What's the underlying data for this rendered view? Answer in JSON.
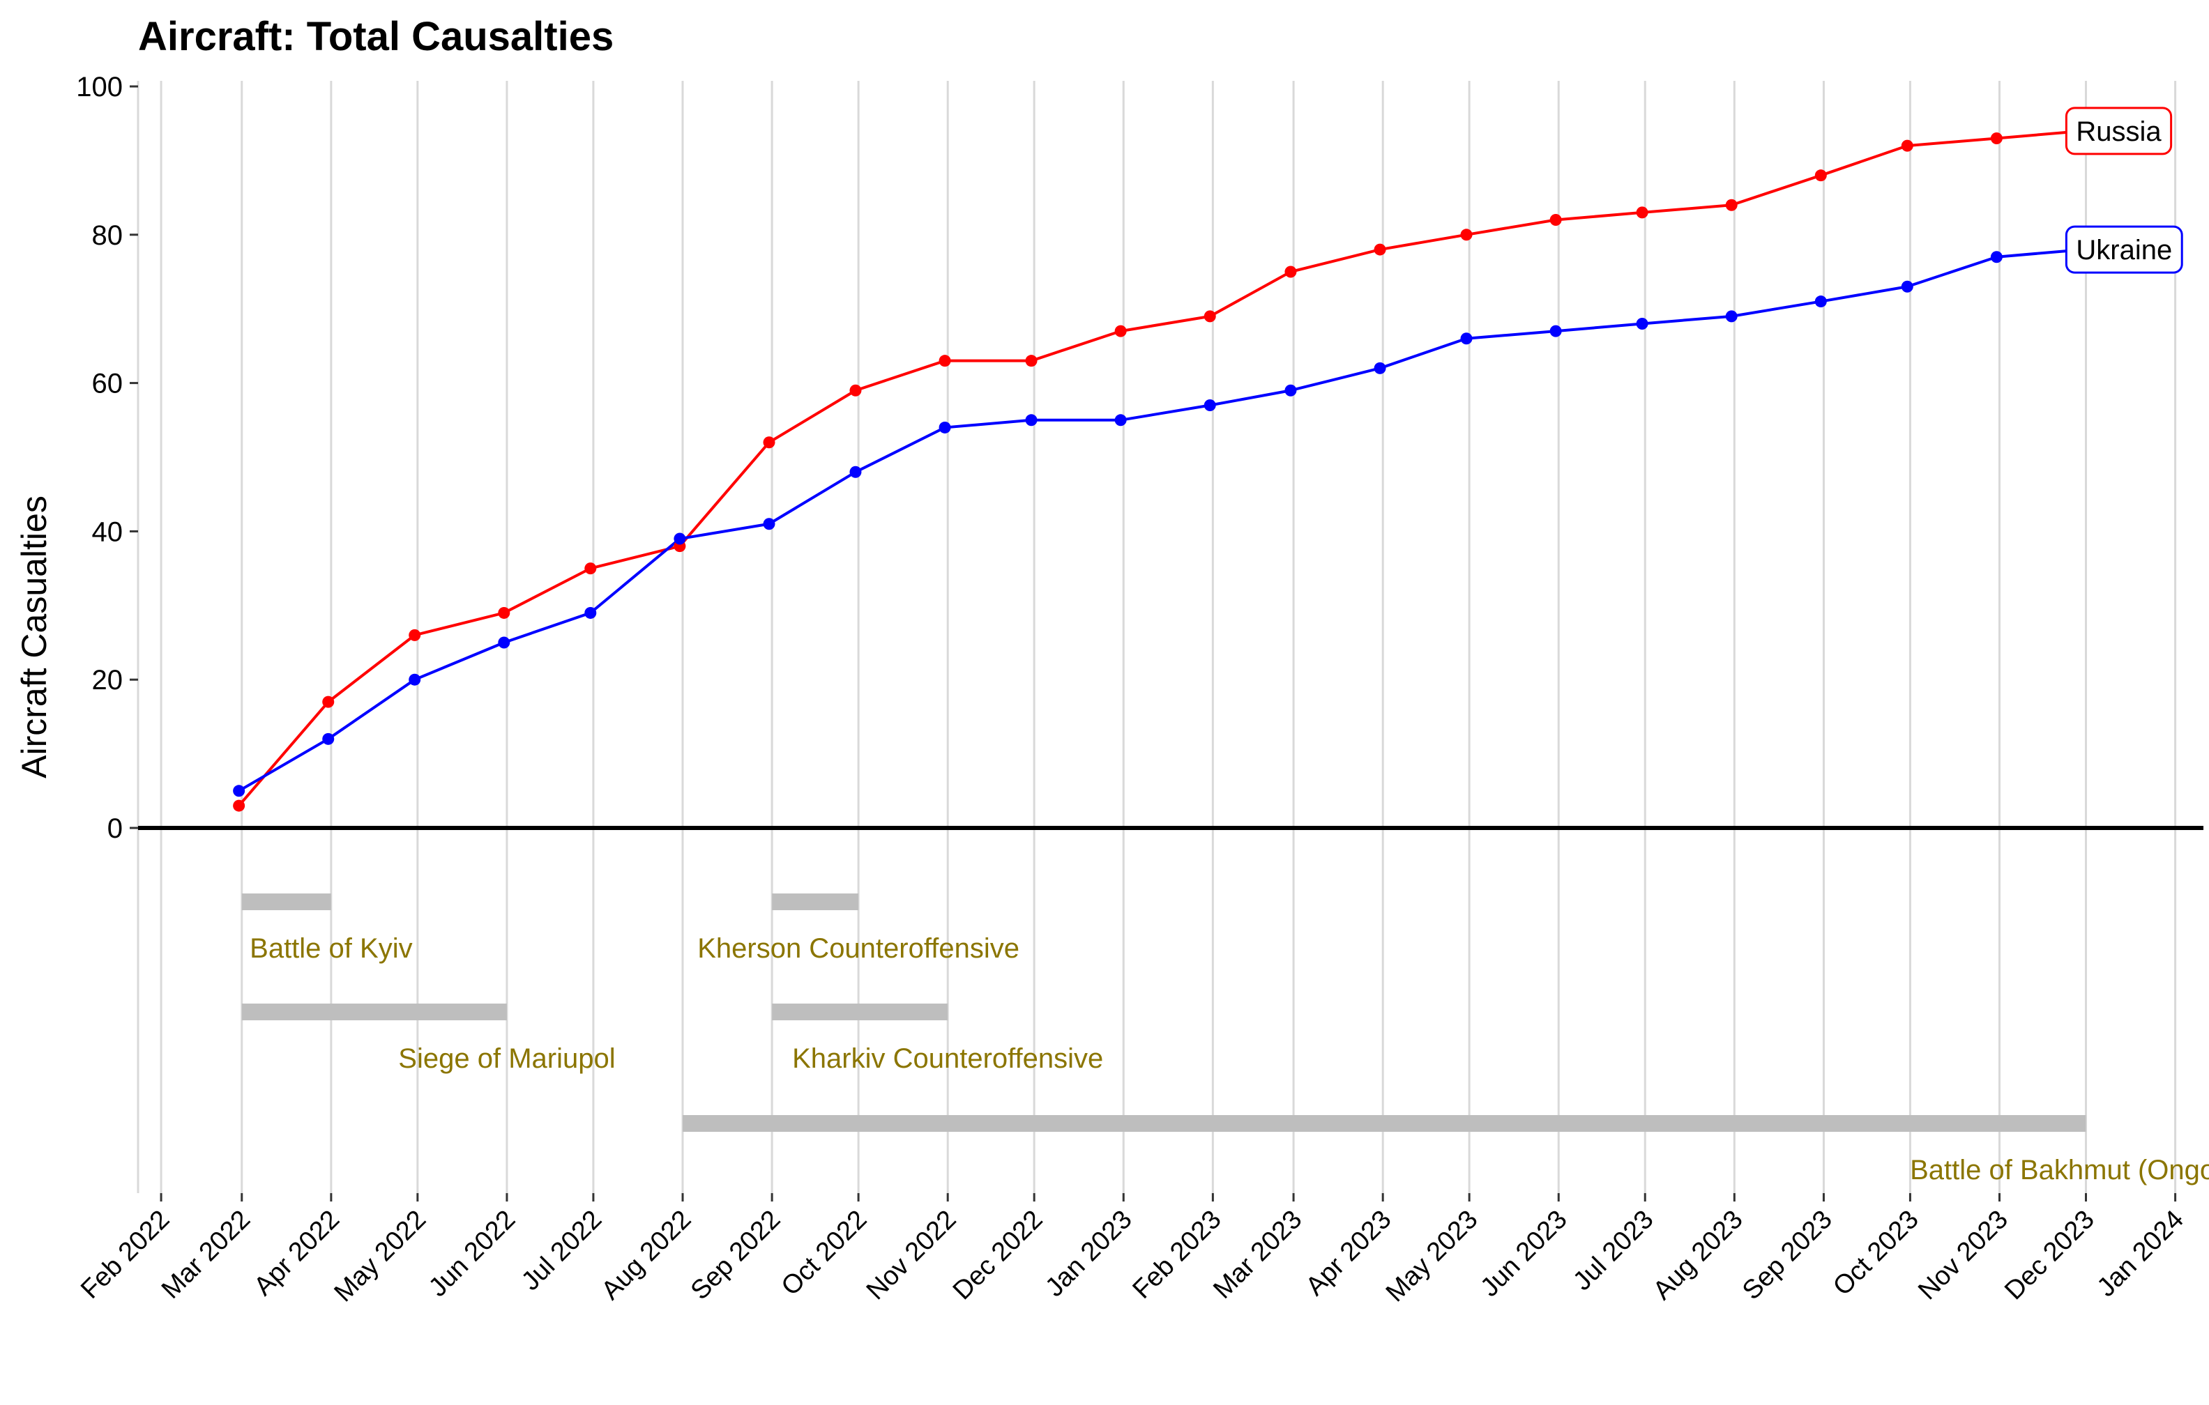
{
  "chart_data": {
    "type": "line",
    "title": "Aircraft: Total Causalties",
    "xlabel": "",
    "ylabel": "Aircraft Casualties",
    "ylim": [
      0,
      100
    ],
    "yticks": [
      0,
      20,
      40,
      60,
      80,
      100
    ],
    "xlim": [
      "2022-01-24",
      "2024-01-04"
    ],
    "xticks": [
      "2022-02-01",
      "2022-03-01",
      "2022-04-01",
      "2022-05-01",
      "2022-06-01",
      "2022-07-01",
      "2022-08-01",
      "2022-09-01",
      "2022-10-01",
      "2022-11-01",
      "2022-12-01",
      "2023-01-01",
      "2023-02-01",
      "2023-03-01",
      "2023-04-01",
      "2023-05-01",
      "2023-06-01",
      "2023-07-01",
      "2023-08-01",
      "2023-09-01",
      "2023-10-01",
      "2023-11-01",
      "2023-12-01",
      "2024-01-01"
    ],
    "xtick_labels": [
      "Feb 2022",
      "Mar 2022",
      "Apr 2022",
      "May 2022",
      "Jun 2022",
      "Jul 2022",
      "Aug 2022",
      "Sep 2022",
      "Oct 2022",
      "Nov 2022",
      "Dec 2022",
      "Jan 2023",
      "Feb 2023",
      "Mar 2023",
      "Apr 2023",
      "May 2023",
      "Jun 2023",
      "Jul 2023",
      "Aug 2023",
      "Sep 2023",
      "Oct 2023",
      "Nov 2023",
      "Dec 2023",
      "Jan 2024"
    ],
    "grid": "vertical major lines only",
    "series": [
      {
        "name": "Russia",
        "color": "#ff0000",
        "x": [
          "2022-02-28",
          "2022-03-31",
          "2022-04-30",
          "2022-05-31",
          "2022-06-30",
          "2022-07-31",
          "2022-08-31",
          "2022-09-30",
          "2022-10-31",
          "2022-11-30",
          "2022-12-31",
          "2023-01-31",
          "2023-02-28",
          "2023-03-31",
          "2023-04-30",
          "2023-05-31",
          "2023-06-30",
          "2023-07-31",
          "2023-08-31",
          "2023-09-30",
          "2023-10-31",
          "2023-11-30"
        ],
        "values": [
          3,
          17,
          26,
          29,
          35,
          38,
          52,
          59,
          63,
          63,
          67,
          69,
          75,
          78,
          80,
          82,
          83,
          84,
          88,
          92,
          93,
          94
        ]
      },
      {
        "name": "Ukraine",
        "color": "#0000ff",
        "x": [
          "2022-02-28",
          "2022-03-31",
          "2022-04-30",
          "2022-05-31",
          "2022-06-30",
          "2022-07-31",
          "2022-08-31",
          "2022-09-30",
          "2022-10-31",
          "2022-11-30",
          "2022-12-31",
          "2023-01-31",
          "2023-02-28",
          "2023-03-31",
          "2023-04-30",
          "2023-05-31",
          "2023-06-30",
          "2023-07-31",
          "2023-08-31",
          "2023-09-30",
          "2023-10-31",
          "2023-11-30"
        ],
        "values": [
          5,
          12,
          20,
          25,
          29,
          39,
          41,
          48,
          54,
          55,
          55,
          57,
          59,
          62,
          66,
          67,
          68,
          69,
          71,
          73,
          77,
          78
        ]
      }
    ],
    "events": [
      {
        "label": "Battle of Kyiv",
        "start": "2022-03-01",
        "end": "2022-04-01",
        "row": 1
      },
      {
        "label": "Siege of Mariupol",
        "start": "2022-03-01",
        "end": "2022-06-01",
        "row": 2
      },
      {
        "label": "Kherson Counteroffensive",
        "start": "2022-09-01",
        "end": "2022-10-01",
        "row": 1
      },
      {
        "label": "Kharkiv Counteroffensive",
        "start": "2022-09-01",
        "end": "2022-11-01",
        "row": 2
      },
      {
        "label": "Battle of Bakhmut (Ongoing)",
        "start": "2022-08-01",
        "end": "2023-12-01",
        "row": 3
      }
    ],
    "colors": {
      "russia": "#ff0000",
      "ukraine": "#0000ff",
      "event_bar": "#bebebe",
      "event_text": "#8b7500",
      "grid": "#d9d9d9",
      "zero_line": "#000000"
    }
  }
}
